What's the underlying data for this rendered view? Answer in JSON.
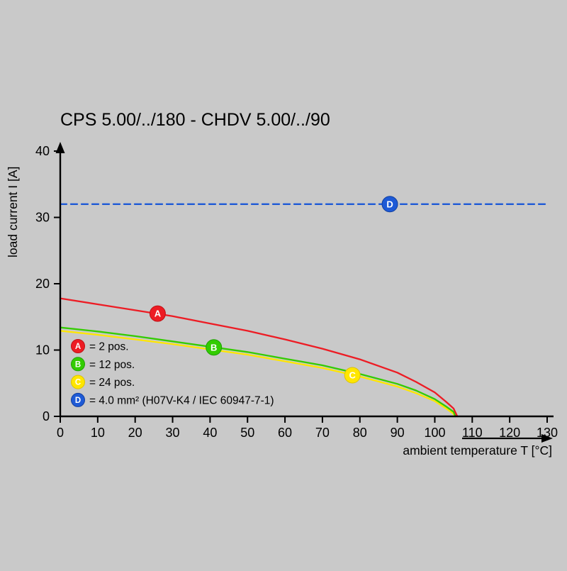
{
  "page": {
    "background": "#c9c9c9"
  },
  "chart_data": {
    "type": "line",
    "title": "CPS 5.00/../180 - CHDV 5.00/../90",
    "xlabel": "ambient temperature T [°C]",
    "ylabel": "load current I [A]",
    "xlim": [
      0,
      130
    ],
    "ylim": [
      0,
      40
    ],
    "xticks": [
      0,
      10,
      20,
      30,
      40,
      50,
      60,
      70,
      80,
      90,
      100,
      110,
      120,
      130
    ],
    "yticks": [
      0,
      10,
      20,
      30,
      40
    ],
    "grid": false,
    "legend_position": "lower-left",
    "series": [
      {
        "name": "A",
        "label": "2 pos.",
        "color": "#ed1c24",
        "style": "solid",
        "points": [
          [
            0,
            17.8
          ],
          [
            10,
            16.9
          ],
          [
            20,
            16.0
          ],
          [
            30,
            15.1
          ],
          [
            40,
            14.0
          ],
          [
            50,
            12.9
          ],
          [
            60,
            11.6
          ],
          [
            70,
            10.2
          ],
          [
            80,
            8.6
          ],
          [
            90,
            6.6
          ],
          [
            95,
            5.2
          ],
          [
            100,
            3.6
          ],
          [
            103,
            2.2
          ],
          [
            105,
            1.2
          ],
          [
            106,
            0
          ]
        ]
      },
      {
        "name": "B",
        "label": "12 pos.",
        "color": "#33cc00",
        "style": "solid",
        "points": [
          [
            0,
            13.4
          ],
          [
            10,
            12.8
          ],
          [
            20,
            12.1
          ],
          [
            30,
            11.3
          ],
          [
            40,
            10.5
          ],
          [
            50,
            9.7
          ],
          [
            60,
            8.7
          ],
          [
            70,
            7.7
          ],
          [
            80,
            6.4
          ],
          [
            90,
            4.9
          ],
          [
            95,
            3.9
          ],
          [
            100,
            2.6
          ],
          [
            103,
            1.5
          ],
          [
            105,
            0.7
          ],
          [
            105.5,
            0
          ]
        ]
      },
      {
        "name": "C",
        "label": "24 pos.",
        "color": "#ffe600",
        "style": "solid",
        "points": [
          [
            0,
            12.9
          ],
          [
            10,
            12.3
          ],
          [
            20,
            11.6
          ],
          [
            30,
            10.9
          ],
          [
            40,
            10.1
          ],
          [
            50,
            9.3
          ],
          [
            60,
            8.3
          ],
          [
            70,
            7.3
          ],
          [
            80,
            6.0
          ],
          [
            90,
            4.5
          ],
          [
            95,
            3.5
          ],
          [
            100,
            2.3
          ],
          [
            103,
            1.2
          ],
          [
            105,
            0.4
          ],
          [
            105.3,
            0
          ]
        ]
      },
      {
        "name": "D",
        "label": "4.0 mm² (H07V-K4 / IEC 60947-7-1)",
        "color": "#1e5ad6",
        "style": "dashed",
        "points": [
          [
            0,
            32
          ],
          [
            130,
            32
          ]
        ]
      }
    ],
    "markers": [
      {
        "name": "A",
        "x": 26,
        "y": 15.5,
        "color": "#ed1c24",
        "edge": "#c01015"
      },
      {
        "name": "B",
        "x": 41,
        "y": 10.4,
        "color": "#33cc00",
        "edge": "#1da100"
      },
      {
        "name": "C",
        "x": 78,
        "y": 6.2,
        "color": "#ffe600",
        "edge": "#dcc400"
      },
      {
        "name": "D",
        "x": 88,
        "y": 32,
        "color": "#1e5ad6",
        "edge": "#123f9e"
      }
    ],
    "legend": [
      {
        "key": "A",
        "color": "#ed1c24",
        "edge": "#c01015",
        "text": "= 2 pos."
      },
      {
        "key": "B",
        "color": "#33cc00",
        "edge": "#1da100",
        "text": "= 12 pos."
      },
      {
        "key": "C",
        "color": "#ffe600",
        "edge": "#dcc400",
        "text": "= 24 pos."
      },
      {
        "key": "D",
        "color": "#1e5ad6",
        "edge": "#123f9e",
        "text": "= 4.0 mm² (H07V-K4 / IEC 60947-7-1)"
      }
    ]
  }
}
